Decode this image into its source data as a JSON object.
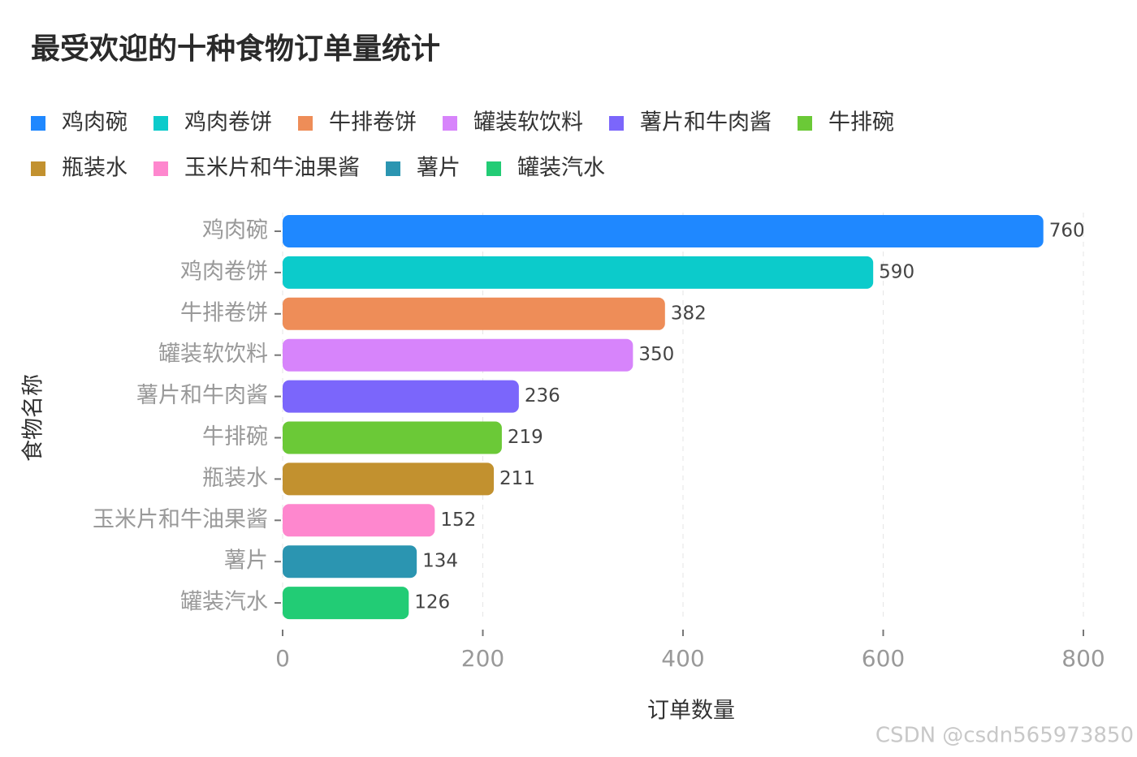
{
  "chart_data": {
    "type": "barh",
    "title": "最受欢迎的十种食物订单量统计",
    "categories": [
      "鸡肉碗",
      "鸡肉卷饼",
      "牛排卷饼",
      "罐装软饮料",
      "薯片和牛肉酱",
      "牛排碗",
      "瓶装水",
      "玉米片和牛油果酱",
      "薯片",
      "罐装汽水"
    ],
    "values": [
      760,
      590,
      382,
      350,
      236,
      219,
      211,
      152,
      134,
      126
    ],
    "colors": [
      "#1f88ff",
      "#0ccbcb",
      "#ee8d58",
      "#d784fb",
      "#7b66fb",
      "#6bc937",
      "#c2912f",
      "#fe87ce",
      "#2b95b1",
      "#22cc75"
    ],
    "xlabel": "订单数量",
    "ylabel": "食物名称",
    "xlim": [
      0,
      800
    ],
    "xticks": [
      0,
      200,
      400,
      600,
      800
    ],
    "grid": true,
    "watermark": "CSDN @csdn565973850"
  }
}
